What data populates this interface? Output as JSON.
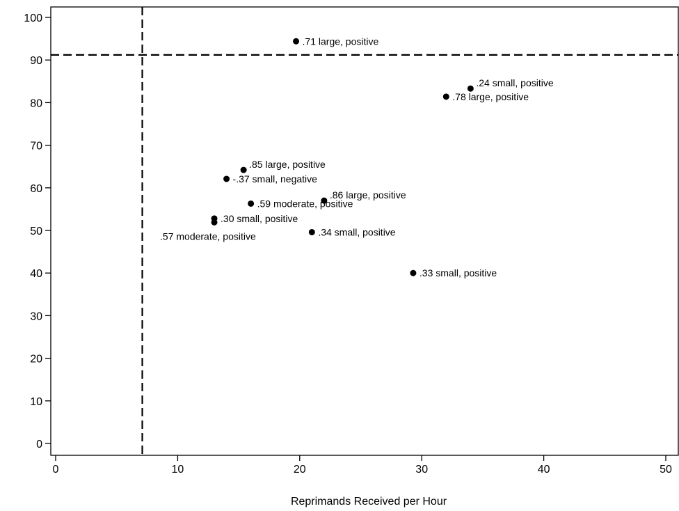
{
  "chart_data": {
    "type": "scatter",
    "title": "",
    "xlabel": "Reprimands Received per Hour",
    "ylabel": "",
    "xlim": [
      -0.5,
      50.5
    ],
    "ylim": [
      -2,
      101
    ],
    "x_ticks": [
      0,
      10,
      20,
      30,
      40,
      50
    ],
    "y_ticks": [
      0,
      10,
      20,
      30,
      40,
      50,
      60,
      70,
      80,
      90,
      100
    ],
    "grid": false,
    "legend": "none",
    "reference_lines": [
      {
        "axis": "x",
        "value": 7.1,
        "style": "dashed"
      },
      {
        "axis": "y",
        "value": 91.2,
        "style": "dashed"
      }
    ],
    "points": [
      {
        "x": 19.7,
        "y": 94.4,
        "label": ".71 large, positive",
        "label_pos": "right"
      },
      {
        "x": 34.0,
        "y": 83.3,
        "label": ".24 small, positive",
        "label_pos": "upper-right"
      },
      {
        "x": 32.0,
        "y": 81.4,
        "label": ".78 large, positive",
        "label_pos": "right"
      },
      {
        "x": 15.4,
        "y": 64.2,
        "label": ".85 large, positive",
        "label_pos": "upper-right"
      },
      {
        "x": 14.0,
        "y": 62.1,
        "label": "-.37 small, negative",
        "label_pos": "right"
      },
      {
        "x": 22.0,
        "y": 57.0,
        "label": ".86 large, positive",
        "label_pos": "upper-right"
      },
      {
        "x": 16.0,
        "y": 56.3,
        "label": ".59 moderate, positive",
        "label_pos": "right"
      },
      {
        "x": 13.0,
        "y": 52.8,
        "label": ".30 small, positive",
        "label_pos": "right"
      },
      {
        "x": 13.0,
        "y": 51.9,
        "label": ".57 moderate, positive",
        "label_pos": "lower-left"
      },
      {
        "x": 21.0,
        "y": 49.6,
        "label": ".34 small, positive",
        "label_pos": "right"
      },
      {
        "x": 29.3,
        "y": 40.0,
        "label": ".33 small, positive",
        "label_pos": "right"
      }
    ],
    "colors": {
      "marker": "#000000",
      "lines": "#000000",
      "background": "#ffffff"
    }
  }
}
